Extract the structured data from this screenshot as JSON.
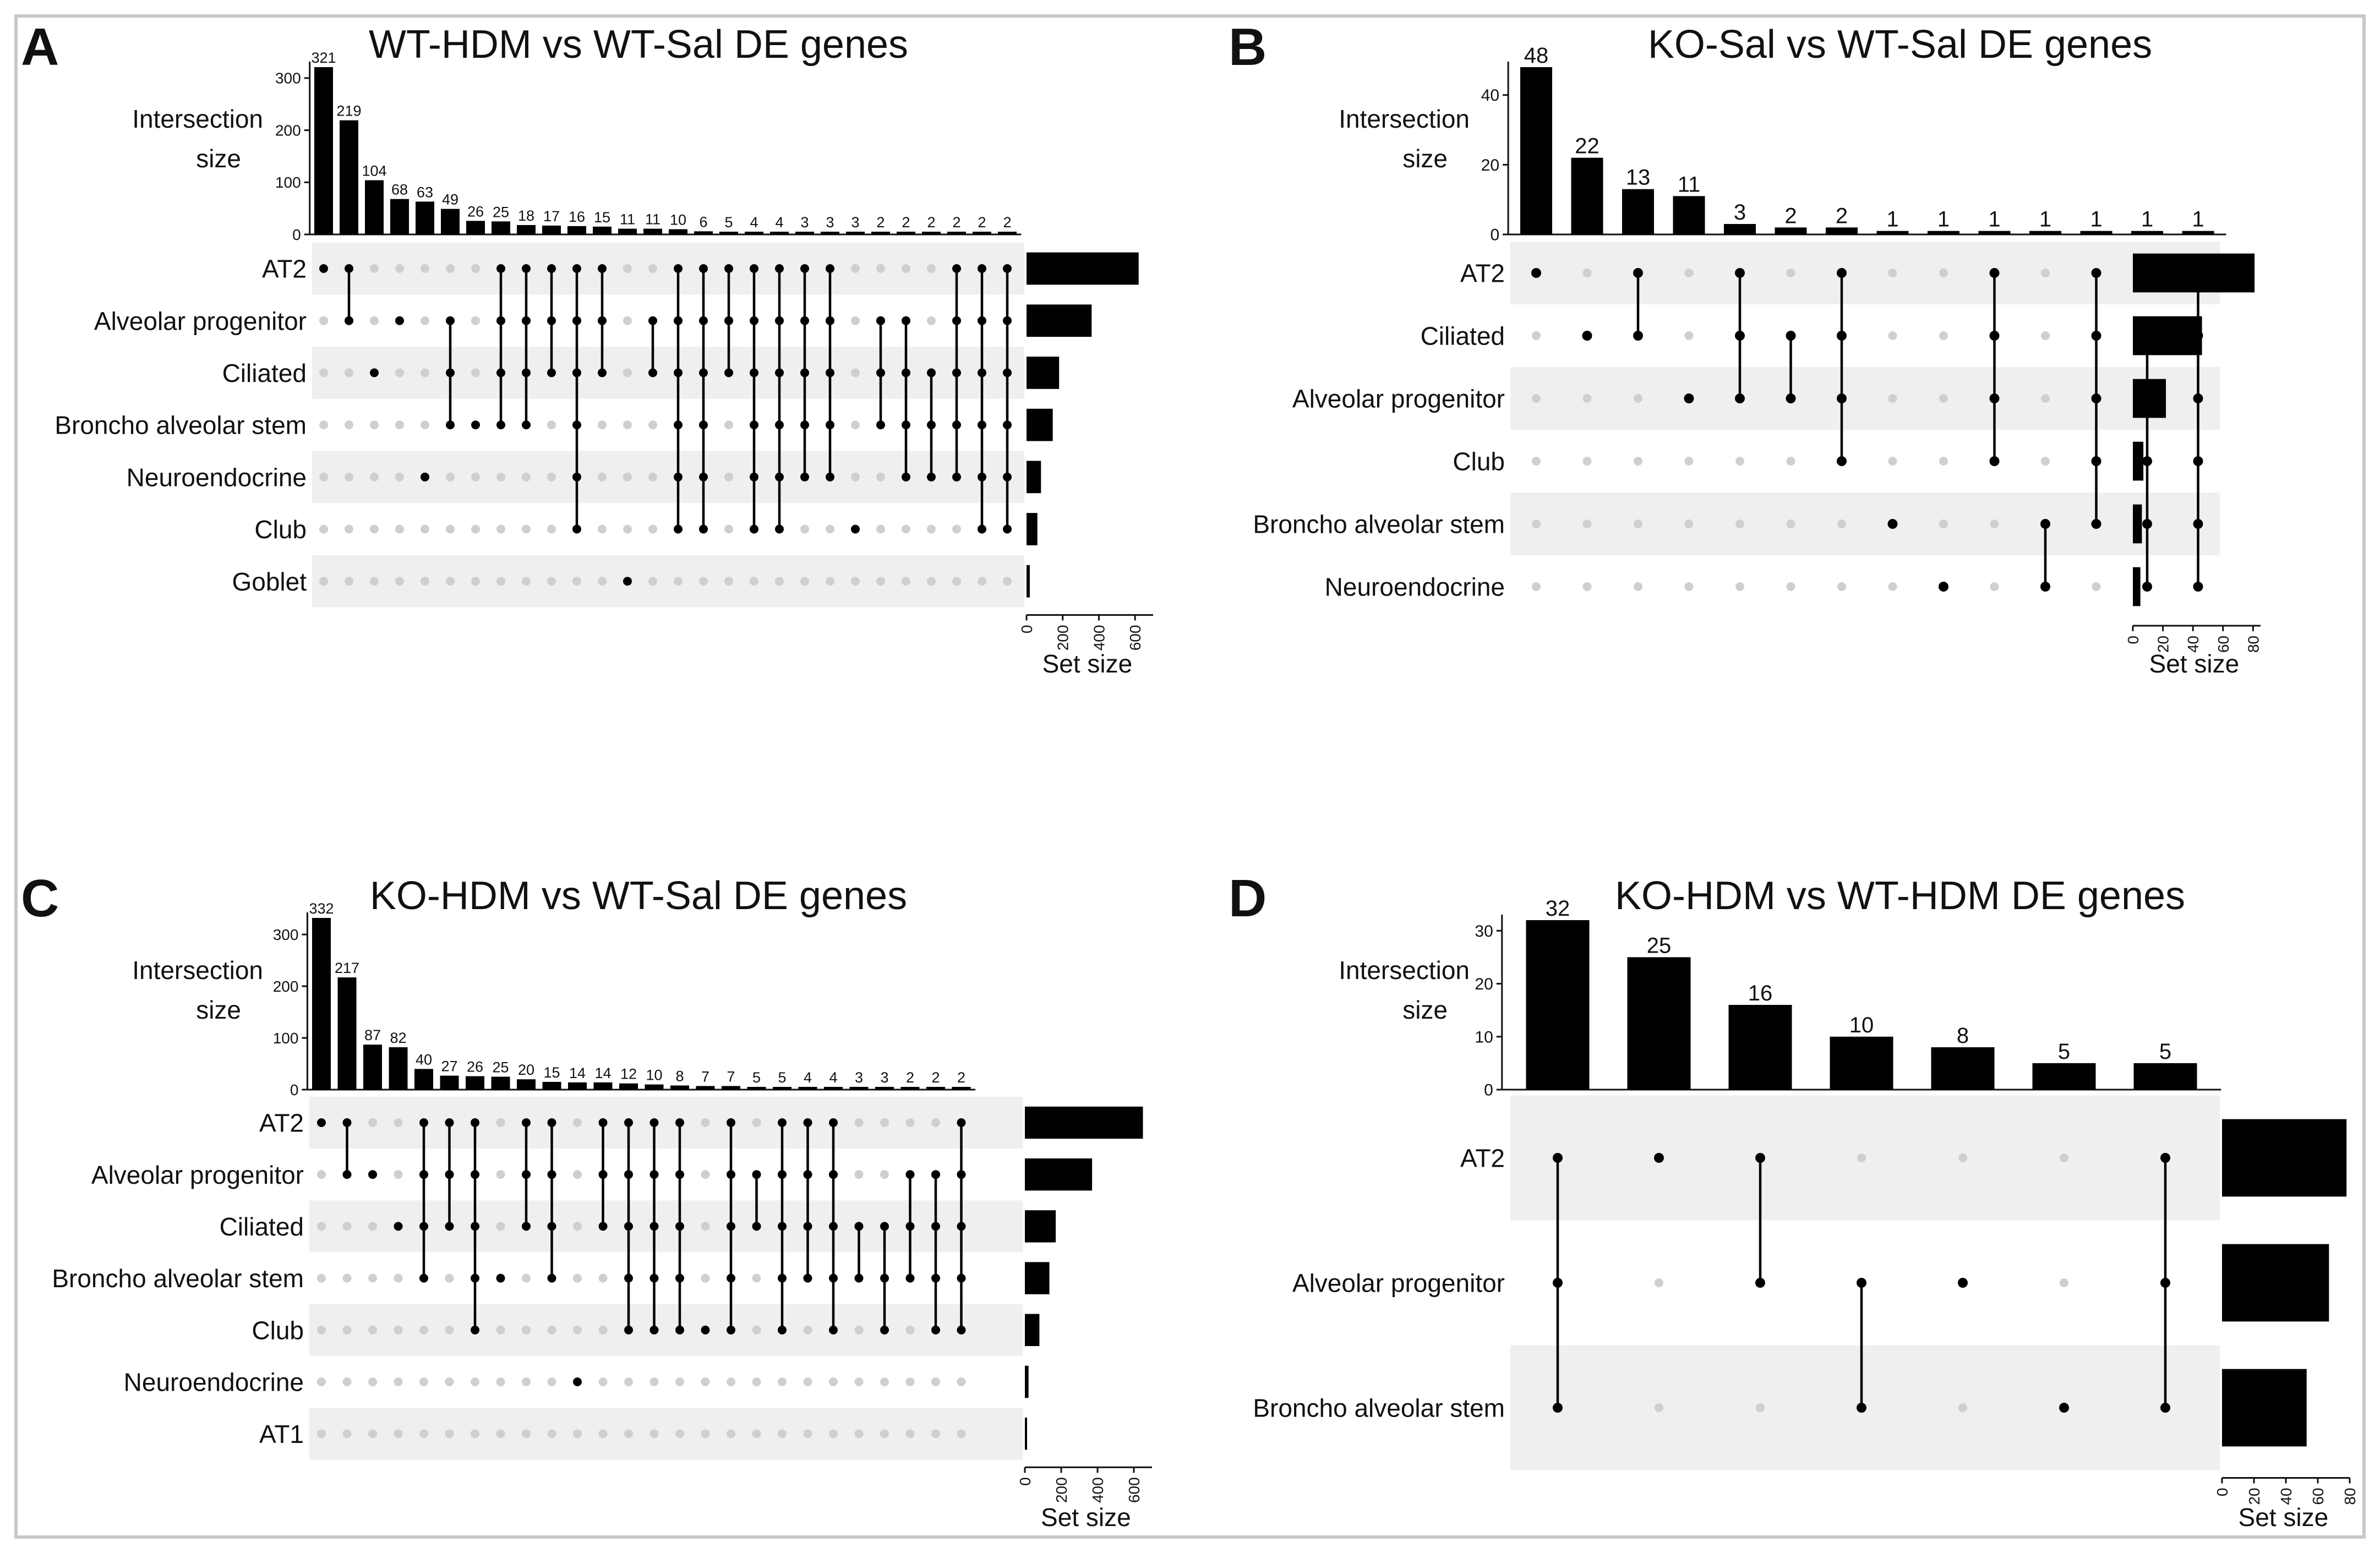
{
  "chart_data": [
    {
      "panel": "A",
      "type": "upset",
      "title": "WT-HDM vs WT-Sal DE genes",
      "ylabel": "Intersection size",
      "set_size_label": "Set size",
      "y_ticks": [
        0,
        100,
        200,
        300
      ],
      "y_max": 321,
      "set_ticks": [
        0,
        200,
        400,
        600
      ],
      "set_max": 700,
      "sets": [
        "AT2",
        "Alveolar progenitor",
        "Ciliated",
        "Broncho alveolar stem",
        "Neuroendocrine",
        "Club",
        "Goblet"
      ],
      "set_sizes": [
        620,
        360,
        180,
        145,
        80,
        60,
        18
      ],
      "intersections": [
        {
          "size": 321,
          "sets": [
            0
          ]
        },
        {
          "size": 219,
          "sets": [
            0,
            1
          ]
        },
        {
          "size": 104,
          "sets": [
            2
          ]
        },
        {
          "size": 68,
          "sets": [
            1
          ]
        },
        {
          "size": 63,
          "sets": [
            4
          ]
        },
        {
          "size": 49,
          "sets": [
            1,
            2,
            3
          ]
        },
        {
          "size": 26,
          "sets": [
            3
          ]
        },
        {
          "size": 25,
          "sets": [
            0,
            1,
            2,
            3
          ]
        },
        {
          "size": 18,
          "sets": [
            0,
            1,
            2,
            3
          ]
        },
        {
          "size": 17,
          "sets": [
            0,
            1,
            2
          ]
        },
        {
          "size": 16,
          "sets": [
            0,
            1,
            2,
            3,
            4,
            5
          ]
        },
        {
          "size": 15,
          "sets": [
            0,
            1,
            2
          ]
        },
        {
          "size": 11,
          "sets": [
            6
          ]
        },
        {
          "size": 11,
          "sets": [
            1,
            2
          ]
        },
        {
          "size": 10,
          "sets": [
            0,
            1,
            2,
            3,
            4,
            5
          ]
        },
        {
          "size": 6,
          "sets": [
            0,
            1,
            2,
            3,
            4,
            5
          ]
        },
        {
          "size": 5,
          "sets": [
            0,
            1,
            2
          ]
        },
        {
          "size": 4,
          "sets": [
            0,
            1,
            2,
            3,
            4,
            5
          ]
        },
        {
          "size": 4,
          "sets": [
            0,
            1,
            2,
            3,
            4,
            5
          ]
        },
        {
          "size": 3,
          "sets": [
            0,
            1,
            2,
            3,
            4
          ]
        },
        {
          "size": 3,
          "sets": [
            0,
            1,
            2,
            3,
            4
          ]
        },
        {
          "size": 3,
          "sets": [
            5
          ]
        },
        {
          "size": 2,
          "sets": [
            1,
            2,
            3
          ]
        },
        {
          "size": 2,
          "sets": [
            1,
            2,
            3,
            4
          ]
        },
        {
          "size": 2,
          "sets": [
            2,
            3,
            4
          ]
        },
        {
          "size": 2,
          "sets": [
            0,
            1,
            2,
            3,
            4
          ]
        },
        {
          "size": 2,
          "sets": [
            0,
            1,
            2,
            3,
            4,
            5
          ]
        },
        {
          "size": 2,
          "sets": [
            0,
            1,
            2,
            3,
            4,
            5
          ]
        }
      ]
    },
    {
      "panel": "B",
      "type": "upset",
      "title": "KO-Sal vs WT-Sal DE genes",
      "ylabel": "Intersection size",
      "set_size_label": "Set size",
      "y_ticks": [
        0,
        20,
        40
      ],
      "y_max": 48,
      "set_ticks": [
        0,
        20,
        40,
        60,
        80
      ],
      "set_max": 85,
      "sets": [
        "AT2",
        "Ciliated",
        "Alveolar progenitor",
        "Club",
        "Broncho alveolar stem",
        "Neuroendocrine"
      ],
      "set_sizes": [
        81,
        46,
        22,
        7,
        6,
        5
      ],
      "intersections": [
        {
          "size": 48,
          "sets": [
            0
          ]
        },
        {
          "size": 22,
          "sets": [
            1
          ]
        },
        {
          "size": 13,
          "sets": [
            0,
            1
          ]
        },
        {
          "size": 11,
          "sets": [
            2
          ]
        },
        {
          "size": 3,
          "sets": [
            0,
            1,
            2
          ]
        },
        {
          "size": 2,
          "sets": [
            1,
            2
          ]
        },
        {
          "size": 2,
          "sets": [
            0,
            1,
            2,
            3
          ]
        },
        {
          "size": 1,
          "sets": [
            4
          ]
        },
        {
          "size": 1,
          "sets": [
            5
          ]
        },
        {
          "size": 1,
          "sets": [
            0,
            1,
            2,
            3
          ]
        },
        {
          "size": 1,
          "sets": [
            4,
            5
          ]
        },
        {
          "size": 1,
          "sets": [
            0,
            1,
            2,
            3,
            4
          ]
        },
        {
          "size": 1,
          "sets": [
            1,
            2,
            3,
            4,
            5
          ]
        },
        {
          "size": 1,
          "sets": [
            0,
            1,
            2,
            3,
            4,
            5
          ]
        }
      ]
    },
    {
      "panel": "C",
      "type": "upset",
      "title": "KO-HDM vs WT-Sal DE genes",
      "ylabel": "Intersection size",
      "set_size_label": "Set size",
      "y_ticks": [
        0,
        100,
        200,
        300
      ],
      "y_max": 332,
      "set_ticks": [
        0,
        200,
        400,
        600
      ],
      "set_max": 700,
      "sets": [
        "AT2",
        "Alveolar progenitor",
        "Ciliated",
        "Broncho alveolar stem",
        "Club",
        "Neuroendocrine",
        "AT1"
      ],
      "set_sizes": [
        650,
        370,
        170,
        135,
        80,
        20,
        5
      ],
      "intersections": [
        {
          "size": 332,
          "sets": [
            0
          ]
        },
        {
          "size": 217,
          "sets": [
            0,
            1
          ]
        },
        {
          "size": 87,
          "sets": [
            1
          ]
        },
        {
          "size": 82,
          "sets": [
            2
          ]
        },
        {
          "size": 40,
          "sets": [
            0,
            1,
            2,
            3
          ]
        },
        {
          "size": 27,
          "sets": [
            0,
            1,
            2
          ]
        },
        {
          "size": 26,
          "sets": [
            0,
            1,
            2,
            3,
            4
          ]
        },
        {
          "size": 25,
          "sets": [
            3
          ]
        },
        {
          "size": 20,
          "sets": [
            0,
            1,
            2
          ]
        },
        {
          "size": 15,
          "sets": [
            0,
            1,
            2,
            3
          ]
        },
        {
          "size": 14,
          "sets": [
            5
          ]
        },
        {
          "size": 14,
          "sets": [
            0,
            1,
            2
          ]
        },
        {
          "size": 12,
          "sets": [
            0,
            1,
            2,
            3,
            4
          ]
        },
        {
          "size": 10,
          "sets": [
            0,
            1,
            2,
            3,
            4
          ]
        },
        {
          "size": 8,
          "sets": [
            0,
            1,
            2,
            3,
            4
          ]
        },
        {
          "size": 7,
          "sets": [
            4
          ]
        },
        {
          "size": 7,
          "sets": [
            0,
            1,
            2,
            3,
            4
          ]
        },
        {
          "size": 5,
          "sets": [
            1,
            2
          ]
        },
        {
          "size": 5,
          "sets": [
            0,
            1,
            2,
            3,
            4
          ]
        },
        {
          "size": 4,
          "sets": [
            0,
            1,
            2,
            3
          ]
        },
        {
          "size": 4,
          "sets": [
            0,
            1,
            2,
            3,
            4
          ]
        },
        {
          "size": 3,
          "sets": [
            2,
            3
          ]
        },
        {
          "size": 3,
          "sets": [
            2,
            3,
            4
          ]
        },
        {
          "size": 2,
          "sets": [
            1,
            2,
            3
          ]
        },
        {
          "size": 2,
          "sets": [
            1,
            2,
            3,
            4
          ]
        },
        {
          "size": 2,
          "sets": [
            0,
            1,
            2,
            3,
            4
          ]
        }
      ]
    },
    {
      "panel": "D",
      "type": "upset",
      "title": "KO-HDM vs WT-HDM DE genes",
      "ylabel": "Intersection size",
      "set_size_label": "Set size",
      "y_ticks": [
        0,
        10,
        20,
        30
      ],
      "y_max": 32,
      "set_ticks": [
        0,
        20,
        40,
        60,
        80
      ],
      "set_max": 80,
      "sets": [
        "AT2",
        "Alveolar progenitor",
        "Broncho alveolar stem"
      ],
      "set_sizes": [
        78,
        67,
        53
      ],
      "intersections": [
        {
          "size": 32,
          "sets": [
            0,
            1,
            2
          ]
        },
        {
          "size": 25,
          "sets": [
            0
          ]
        },
        {
          "size": 16,
          "sets": [
            0,
            1
          ]
        },
        {
          "size": 10,
          "sets": [
            1,
            2
          ]
        },
        {
          "size": 8,
          "sets": [
            1
          ]
        },
        {
          "size": 5,
          "sets": [
            2
          ]
        },
        {
          "size": 5,
          "sets": [
            0,
            1,
            2
          ]
        }
      ]
    }
  ]
}
